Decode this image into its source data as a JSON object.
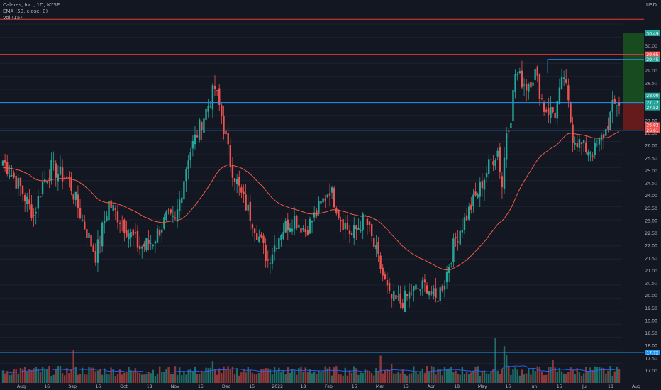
{
  "legend": {
    "symbol": "Caleres, Inc., 1D, NYSE",
    "ema": "EMA (50, close, 0)",
    "vol": "Vol (15)"
  },
  "price_unit": "USD",
  "colors": {
    "background": "#131722",
    "up": "#26a69a",
    "down": "#ef5350",
    "ema": "#f05a44",
    "volume_ma": "#2962ff",
    "hline_blue": "#2196f3",
    "hline_red": "#e53935",
    "target_zone": "#1b5e20",
    "stop_zone": "#7b1c1c"
  },
  "chart_data": {
    "type": "candlestick",
    "title": "Caleres, Inc., 1D, NYSE",
    "ylim": [
      16.5,
      31.2
    ],
    "y_ticks": [
      "30.00",
      "29.50",
      "29.00",
      "28.50",
      "28.00",
      "27.50",
      "27.00",
      "26.50",
      "26.00",
      "25.50",
      "25.00",
      "24.50",
      "24.00",
      "23.50",
      "23.00",
      "22.50",
      "22.00",
      "21.50",
      "21.00",
      "20.50",
      "20.00",
      "19.50",
      "19.00",
      "18.50",
      "18.00",
      "17.50",
      "17.00"
    ],
    "x_ticks": [
      "Aug",
      "16",
      "Sep",
      "16",
      "Oct",
      "18",
      "Nov",
      "15",
      "Dec",
      "15",
      "2022",
      "18",
      "Feb",
      "15",
      "Mar",
      "15",
      "Apr",
      "18",
      "May",
      "16",
      "Jun",
      "15",
      "Jul",
      "18",
      "Aug"
    ],
    "price_labels": [
      {
        "value": 30.49,
        "text": "30.49",
        "color": "#26a69a"
      },
      {
        "value": 29.65,
        "text": "29.65",
        "color": "#ef5350"
      },
      {
        "value": 29.45,
        "text": "29.45",
        "color": "#26a69a"
      },
      {
        "value": 28.0,
        "text": "28.00",
        "color": "#26a69a"
      },
      {
        "value": 27.72,
        "text": "27.72",
        "color": "#26a69a"
      },
      {
        "value": 27.52,
        "text": "27.52",
        "color": "#26a69a"
      },
      {
        "value": 26.82,
        "text": "26.82",
        "color": "#ef5350"
      },
      {
        "value": 26.61,
        "text": "26.61",
        "color": "#ef5350"
      },
      {
        "value": 17.72,
        "text": "17.72",
        "color": "#2196f3"
      }
    ],
    "horizontal_lines": [
      {
        "value": 31.05,
        "color": "red"
      },
      {
        "value": 29.65,
        "color": "red"
      },
      {
        "value": 27.72,
        "color": "blue"
      },
      {
        "value": 26.61,
        "color": "blue"
      },
      {
        "value": 17.72,
        "color": "blue"
      }
    ],
    "key_points": [
      [
        0,
        25.4
      ],
      [
        8,
        24.3
      ],
      [
        14,
        23.2
      ],
      [
        18,
        24.5
      ],
      [
        22,
        25.1
      ],
      [
        30,
        24.6
      ],
      [
        36,
        23.0
      ],
      [
        42,
        21.6
      ],
      [
        48,
        23.7
      ],
      [
        55,
        22.8
      ],
      [
        62,
        21.9
      ],
      [
        68,
        22.2
      ],
      [
        74,
        23.1
      ],
      [
        78,
        22.9
      ],
      [
        84,
        25.6
      ],
      [
        88,
        26.5
      ],
      [
        92,
        27.4
      ],
      [
        96,
        28.3
      ],
      [
        99,
        27.2
      ],
      [
        103,
        25.3
      ],
      [
        108,
        24.0
      ],
      [
        114,
        22.8
      ],
      [
        120,
        21.4
      ],
      [
        126,
        22.6
      ],
      [
        132,
        23.1
      ],
      [
        137,
        22.6
      ],
      [
        142,
        23.3
      ],
      [
        148,
        24.3
      ],
      [
        153,
        23.1
      ],
      [
        158,
        22.4
      ],
      [
        164,
        23.1
      ],
      [
        170,
        21.4
      ],
      [
        175,
        19.9
      ],
      [
        180,
        19.7
      ],
      [
        186,
        20.2
      ],
      [
        192,
        20.4
      ],
      [
        196,
        19.8
      ],
      [
        200,
        20.6
      ],
      [
        205,
        22.3
      ],
      [
        210,
        23.2
      ],
      [
        216,
        24.3
      ],
      [
        221,
        25.4
      ],
      [
        224,
        25.8
      ],
      [
        226,
        24.4
      ],
      [
        228,
        26.6
      ],
      [
        230,
        27.2
      ],
      [
        232,
        28.9
      ],
      [
        237,
        28.4
      ],
      [
        241,
        28.9
      ],
      [
        245,
        27.5
      ],
      [
        250,
        27.3
      ],
      [
        254,
        28.8
      ],
      [
        258,
        26.4
      ],
      [
        263,
        25.9
      ],
      [
        268,
        25.8
      ],
      [
        273,
        26.6
      ],
      [
        276,
        27.5
      ],
      [
        278,
        27.72
      ]
    ]
  },
  "volume": {
    "label": "Volume",
    "spikes": [
      [
        32,
        4.2
      ],
      [
        95,
        2.8
      ],
      [
        171,
        3.5
      ],
      [
        176,
        2.4
      ],
      [
        223,
        5.8
      ],
      [
        227,
        4.7
      ],
      [
        228,
        3.6
      ],
      [
        249,
        3.0
      ]
    ]
  }
}
